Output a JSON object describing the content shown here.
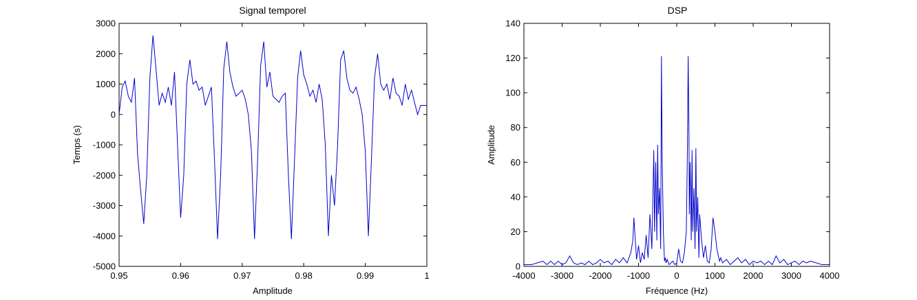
{
  "figure": {
    "background": "#ffffff",
    "line_color": "#0000cc"
  },
  "chart_data": [
    {
      "type": "line",
      "title": "Signal temporel",
      "xlabel": "Amplitude",
      "ylabel": "Temps (s)",
      "xlim": [
        0.95,
        1.0
      ],
      "ylim": [
        -5000,
        3000
      ],
      "xticks": [
        "0.95",
        "0.96",
        "0.97",
        "0.98",
        "0.99",
        "1"
      ],
      "xtick_values": [
        0.95,
        0.96,
        0.97,
        0.98,
        0.99,
        1.0
      ],
      "yticks": [
        "3000",
        "2000",
        "1000",
        "0",
        "-1000",
        "-2000",
        "-3000",
        "-4000",
        "-5000"
      ],
      "ytick_values": [
        3000,
        2000,
        1000,
        0,
        -1000,
        -2000,
        -3000,
        -4000,
        -5000
      ],
      "series": [
        {
          "x": [
            0.95,
            0.9505,
            0.951,
            0.9515,
            0.952,
            0.9525,
            0.953,
            0.9535,
            0.954,
            0.9545,
            0.955,
            0.9555,
            0.956,
            0.9565,
            0.957,
            0.9575,
            0.958,
            0.9585,
            0.959,
            0.9595,
            0.96,
            0.9605,
            0.961,
            0.9615,
            0.962,
            0.9625,
            0.963,
            0.9635,
            0.964,
            0.9645,
            0.965,
            0.9655,
            0.966,
            0.9665,
            0.967,
            0.9675,
            0.968,
            0.9685,
            0.969,
            0.9695,
            0.97,
            0.9705,
            0.971,
            0.9715,
            0.972,
            0.9725,
            0.973,
            0.9735,
            0.974,
            0.9745,
            0.975,
            0.9755,
            0.976,
            0.9765,
            0.977,
            0.9775,
            0.978,
            0.9785,
            0.979,
            0.9795,
            0.98,
            0.9805,
            0.981,
            0.9815,
            0.982,
            0.9825,
            0.983,
            0.9835,
            0.984,
            0.9845,
            0.985,
            0.9855,
            0.986,
            0.9865,
            0.987,
            0.9875,
            0.988,
            0.9885,
            0.989,
            0.9895,
            0.99,
            0.9905,
            0.991,
            0.9915,
            0.992,
            0.9925,
            0.993,
            0.9935,
            0.994,
            0.9945,
            0.995,
            0.9955,
            0.996,
            0.9965,
            0.997,
            0.9975,
            0.998,
            0.9985,
            0.999,
            0.9995,
            1.0
          ],
          "y": [
            0,
            900,
            1100,
            600,
            400,
            1200,
            -1300,
            -2500,
            -3600,
            -2000,
            1200,
            2600,
            1500,
            300,
            700,
            400,
            900,
            300,
            1400,
            -1000,
            -3400,
            -2000,
            1000,
            1800,
            1000,
            1100,
            800,
            900,
            300,
            600,
            900,
            -1500,
            -4100,
            -2000,
            1500,
            2400,
            1400,
            900,
            600,
            700,
            800,
            500,
            0,
            -1200,
            -4100,
            -1500,
            1600,
            2400,
            900,
            1400,
            600,
            500,
            400,
            600,
            700,
            -2000,
            -4100,
            -1500,
            1200,
            2100,
            1300,
            1000,
            600,
            800,
            400,
            1000,
            500,
            -1000,
            -4000,
            -2000,
            -3000,
            -1000,
            1800,
            2100,
            1200,
            800,
            700,
            900,
            500,
            0,
            -1200,
            -4000,
            -1500,
            1200,
            2000,
            1000,
            800,
            1000,
            500,
            1200,
            700,
            600,
            300,
            1000,
            500,
            800,
            400,
            0,
            300,
            300,
            300
          ]
        }
      ]
    },
    {
      "type": "line",
      "title": "DSP",
      "xlabel": "Fréquence (Hz)",
      "ylabel": "Amplitude",
      "xlim": [
        -4000,
        4000
      ],
      "ylim": [
        0,
        140
      ],
      "xticks": [
        "-4000",
        "-3000",
        "-2000",
        "-1000",
        "0",
        "1000",
        "2000",
        "3000",
        "4000"
      ],
      "xtick_values": [
        -4000,
        -3000,
        -2000,
        -1000,
        0,
        1000,
        2000,
        3000,
        4000
      ],
      "yticks": [
        "140",
        "120",
        "100",
        "80",
        "60",
        "40",
        "20",
        "0"
      ],
      "ytick_values": [
        140,
        120,
        100,
        80,
        60,
        40,
        20,
        0
      ],
      "series": [
        {
          "x": [
            -4000,
            -3800,
            -3500,
            -3400,
            -3300,
            -3200,
            -3100,
            -3000,
            -2900,
            -2800,
            -2700,
            -2600,
            -2500,
            -2400,
            -2300,
            -2200,
            -2100,
            -2000,
            -1900,
            -1800,
            -1700,
            -1600,
            -1500,
            -1400,
            -1300,
            -1200,
            -1150,
            -1120,
            -1100,
            -1050,
            -1000,
            -950,
            -900,
            -850,
            -800,
            -750,
            -700,
            -650,
            -600,
            -580,
            -550,
            -520,
            -500,
            -480,
            -450,
            -420,
            -400,
            -380,
            -350,
            -330,
            -320,
            -300,
            -280,
            -250,
            -200,
            -150,
            -100,
            -50,
            0,
            50,
            100,
            150,
            200,
            250,
            280,
            300,
            320,
            330,
            350,
            380,
            400,
            420,
            450,
            480,
            500,
            520,
            550,
            580,
            600,
            650,
            700,
            750,
            800,
            850,
            900,
            950,
            1000,
            1050,
            1100,
            1120,
            1150,
            1200,
            1300,
            1400,
            1500,
            1600,
            1700,
            1800,
            1900,
            2000,
            2100,
            2200,
            2300,
            2400,
            2500,
            2600,
            2700,
            2800,
            2900,
            3000,
            3100,
            3200,
            3300,
            3400,
            3500,
            3800,
            4000
          ],
          "y": [
            1,
            1,
            3,
            1,
            3,
            1,
            3,
            1,
            2,
            6,
            2,
            1,
            2,
            1,
            3,
            1,
            2,
            4,
            2,
            3,
            1,
            4,
            2,
            5,
            2,
            8,
            15,
            28,
            20,
            4,
            12,
            2,
            8,
            4,
            18,
            5,
            30,
            10,
            67,
            20,
            60,
            15,
            70,
            30,
            45,
            10,
            121,
            60,
            20,
            8,
            3,
            5,
            2,
            4,
            1,
            2,
            3,
            1,
            2,
            10,
            3,
            2,
            8,
            20,
            66,
            121,
            75,
            30,
            60,
            15,
            67,
            20,
            45,
            10,
            68,
            20,
            40,
            5,
            30,
            15,
            5,
            12,
            3,
            2,
            10,
            28,
            20,
            10,
            5,
            3,
            5,
            2,
            4,
            1,
            3,
            5,
            2,
            4,
            1,
            3,
            2,
            3,
            1,
            3,
            1,
            6,
            2,
            4,
            1,
            2,
            3,
            1,
            3,
            2,
            3,
            1,
            1
          ]
        }
      ]
    }
  ]
}
